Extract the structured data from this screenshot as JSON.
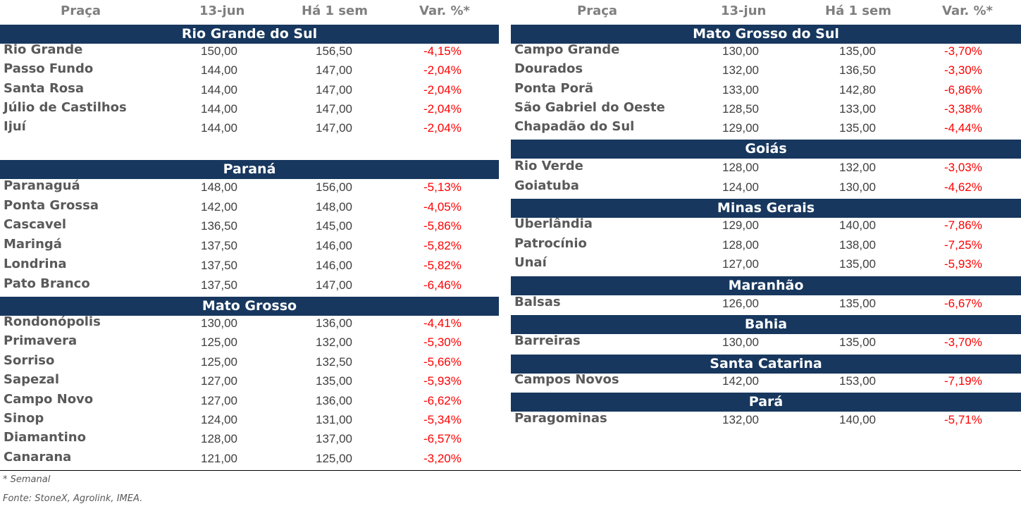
{
  "headers": {
    "praca": "Praça",
    "date": "13-jun",
    "prev": "Há 1 sem",
    "var": "Var. %*"
  },
  "left": {
    "rs": {
      "title": "Rio Grande do Sul",
      "rows": [
        {
          "place": "Rio Grande",
          "cur": "150,00",
          "prev": "156,50",
          "var": "-4,15%"
        },
        {
          "place": "Passo Fundo",
          "cur": "144,00",
          "prev": "147,00",
          "var": "-2,04%"
        },
        {
          "place": "Santa Rosa",
          "cur": "144,00",
          "prev": "147,00",
          "var": "-2,04%"
        },
        {
          "place": "Júlio de Castilhos",
          "cur": "144,00",
          "prev": "147,00",
          "var": "-2,04%"
        },
        {
          "place": "Ijuí",
          "cur": "144,00",
          "prev": "147,00",
          "var": "-2,04%"
        }
      ]
    },
    "pr": {
      "title": "Paraná",
      "rows": [
        {
          "place": "Paranaguá",
          "cur": "148,00",
          "prev": "156,00",
          "var": "-5,13%"
        },
        {
          "place": "Ponta Grossa",
          "cur": "142,00",
          "prev": "148,00",
          "var": "-4,05%"
        },
        {
          "place": "Cascavel",
          "cur": "136,50",
          "prev": "145,00",
          "var": "-5,86%"
        },
        {
          "place": "Maringá",
          "cur": "137,50",
          "prev": "146,00",
          "var": "-5,82%"
        },
        {
          "place": "Londrina",
          "cur": "137,50",
          "prev": "146,00",
          "var": "-5,82%"
        },
        {
          "place": "Pato Branco",
          "cur": "137,50",
          "prev": "147,00",
          "var": "-6,46%"
        }
      ]
    },
    "mt": {
      "title": "Mato Grosso",
      "rows": [
        {
          "place": "Rondonópolis",
          "cur": "130,00",
          "prev": "136,00",
          "var": "-4,41%"
        },
        {
          "place": "Primavera",
          "cur": "125,00",
          "prev": "132,00",
          "var": "-5,30%"
        },
        {
          "place": "Sorriso",
          "cur": "125,00",
          "prev": "132,50",
          "var": "-5,66%"
        },
        {
          "place": "Sapezal",
          "cur": "127,00",
          "prev": "135,00",
          "var": "-5,93%"
        },
        {
          "place": "Campo Novo",
          "cur": "127,00",
          "prev": "136,00",
          "var": "-6,62%"
        },
        {
          "place": "Sinop",
          "cur": "124,00",
          "prev": "131,00",
          "var": "-5,34%"
        },
        {
          "place": "Diamantino",
          "cur": "128,00",
          "prev": "137,00",
          "var": "-6,57%"
        },
        {
          "place": "Canarana",
          "cur": "121,00",
          "prev": "125,00",
          "var": "-3,20%"
        }
      ]
    }
  },
  "right": {
    "ms": {
      "title": "Mato Grosso do Sul",
      "rows": [
        {
          "place": "Campo Grande",
          "cur": "130,00",
          "prev": "135,00",
          "var": "-3,70%"
        },
        {
          "place": "Dourados",
          "cur": "132,00",
          "prev": "136,50",
          "var": "-3,30%"
        },
        {
          "place": "Ponta Porã",
          "cur": "133,00",
          "prev": "142,80",
          "var": "-6,86%"
        },
        {
          "place": "São Gabriel do Oeste",
          "cur": "128,50",
          "prev": "133,00",
          "var": "-3,38%"
        },
        {
          "place": "Chapadão do Sul",
          "cur": "129,00",
          "prev": "135,00",
          "var": "-4,44%"
        }
      ]
    },
    "go": {
      "title": "Goiás",
      "rows": [
        {
          "place": "Rio Verde",
          "cur": "128,00",
          "prev": "132,00",
          "var": "-3,03%"
        },
        {
          "place": "Goiatuba",
          "cur": "124,00",
          "prev": "130,00",
          "var": "-4,62%"
        }
      ]
    },
    "mg": {
      "title": "Minas Gerais",
      "rows": [
        {
          "place": "Uberlândia",
          "cur": "129,00",
          "prev": "140,00",
          "var": "-7,86%"
        },
        {
          "place": "Patrocínio",
          "cur": "128,00",
          "prev": "138,00",
          "var": "-7,25%"
        },
        {
          "place": "Unaí",
          "cur": "127,00",
          "prev": "135,00",
          "var": "-5,93%"
        }
      ]
    },
    "ma": {
      "title": "Maranhão",
      "rows": [
        {
          "place": "Balsas",
          "cur": "126,00",
          "prev": "135,00",
          "var": "-6,67%"
        }
      ]
    },
    "ba": {
      "title": "Bahia",
      "rows": [
        {
          "place": "Barreiras",
          "cur": "130,00",
          "prev": "135,00",
          "var": "-3,70%"
        }
      ]
    },
    "sc": {
      "title": "Santa Catarina",
      "rows": [
        {
          "place": "Campos Novos",
          "cur": "142,00",
          "prev": "153,00",
          "var": "-7,19%"
        }
      ]
    },
    "pa": {
      "title": "Pará",
      "rows": [
        {
          "place": "Paragominas",
          "cur": "132,00",
          "prev": "140,00",
          "var": "-5,71%"
        }
      ]
    }
  },
  "footer": {
    "note": "* Semanal",
    "source": "Fonte: StoneX, Agrolink, IMEA."
  },
  "colors": {
    "band": "#17375e",
    "negative": "#ff0000"
  }
}
